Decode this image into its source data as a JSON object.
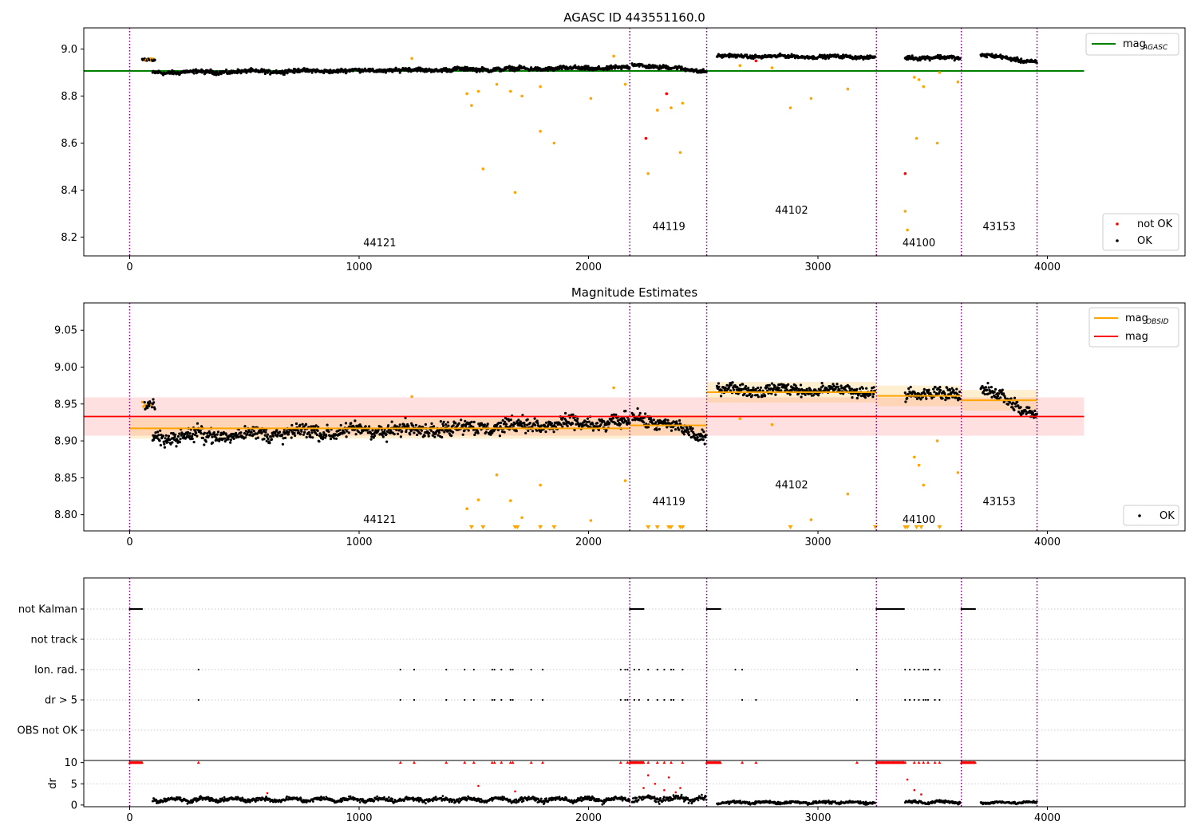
{
  "chart_data": [
    {
      "type": "scatter",
      "title": "AGASC ID 443551160.0",
      "xlabel": "",
      "ylabel": "",
      "xlim": [
        -200,
        4600
      ],
      "ylim": [
        8.12,
        9.09
      ],
      "xticks": [
        0,
        1000,
        2000,
        3000,
        4000
      ],
      "yticks": [
        "8.2",
        "8.4",
        "8.6",
        "8.8",
        "9.0"
      ],
      "obsid_boundaries": [
        0,
        2180,
        2515,
        3255,
        3625,
        3955
      ],
      "obsid_labels": [
        {
          "text": "44121",
          "x": 1090,
          "y": 8.16
        },
        {
          "text": "44119",
          "x": 2350,
          "y": 8.23
        },
        {
          "text": "44102",
          "x": 2885,
          "y": 8.3
        },
        {
          "text": "44100",
          "x": 3440,
          "y": 8.16
        },
        {
          "text": "43153",
          "x": 3790,
          "y": 8.23
        }
      ],
      "lines": [
        {
          "name": "mag_AGASC",
          "legend_main": "mag",
          "legend_sub": "AGASC",
          "color": "#008000",
          "x": [
            -200,
            4160
          ],
          "y": [
            8.907,
            8.907
          ]
        }
      ],
      "segments_ok": [
        {
          "x": [
            100,
            2180
          ],
          "y0": 8.9,
          "y1": 8.92,
          "jitter": 0.012
        },
        {
          "x": [
            2190,
            2515
          ],
          "y0": 8.935,
          "y1": 8.905,
          "jitter": 0.012
        },
        {
          "x": [
            2560,
            3250
          ],
          "y0": 8.97,
          "y1": 8.966,
          "jitter": 0.01
        },
        {
          "x": [
            3380,
            3620
          ],
          "y0": 8.965,
          "y1": 8.962,
          "jitter": 0.012
        },
        {
          "x": [
            3710,
            3955
          ],
          "y0": 8.975,
          "y1": 8.945,
          "jitter": 0.012
        }
      ],
      "early_points": {
        "x": [
          55,
          110
        ],
        "y": 8.955
      },
      "flagged_points": {
        "color": "#ffa500",
        "x": [
          1470,
          1490,
          1520,
          1540,
          1600,
          1660,
          1680,
          1710,
          1790,
          1850,
          1790,
          2010,
          2160,
          2260,
          2300,
          2360,
          2410,
          2400,
          2660,
          2800,
          2880,
          2970,
          3130,
          3380,
          3390,
          3420,
          3430,
          3440,
          3460,
          3520,
          3530,
          3610,
          1230,
          2110
        ],
        "y": [
          8.81,
          8.76,
          8.82,
          8.49,
          8.85,
          8.82,
          8.39,
          8.8,
          8.65,
          8.6,
          8.84,
          8.79,
          8.85,
          8.47,
          8.74,
          8.75,
          8.77,
          8.56,
          8.93,
          8.92,
          8.75,
          8.79,
          8.83,
          8.31,
          8.23,
          8.88,
          8.62,
          8.87,
          8.84,
          8.6,
          8.9,
          8.86,
          8.96,
          8.97
        ]
      },
      "not_ok_points": {
        "color": "#ff0000",
        "x": [
          2250,
          2340,
          3380,
          2730
        ],
        "y": [
          8.62,
          8.81,
          8.47,
          8.95
        ]
      },
      "legends": [
        {
          "position": "upper right",
          "entries": [
            {
              "label": "mag",
              "sub": "AGASC",
              "marker": "line",
              "color": "#008000"
            }
          ]
        },
        {
          "position": "lower right",
          "entries": [
            {
              "label": "not OK",
              "marker": "dot",
              "color": "#ff0000"
            },
            {
              "label": "OK",
              "marker": "dot",
              "color": "#000000"
            }
          ]
        }
      ]
    },
    {
      "type": "scatter",
      "title": "Magnitude Estimates",
      "xlabel": "",
      "ylabel": "",
      "xlim": [
        -200,
        4600
      ],
      "ylim": [
        8.778,
        9.087
      ],
      "xticks": [
        0,
        1000,
        2000,
        3000,
        4000
      ],
      "yticks": [
        "8.80",
        "8.85",
        "8.90",
        "8.95",
        "9.00",
        "9.05"
      ],
      "obsid_boundaries": [
        0,
        2180,
        2515,
        3255,
        3625,
        3955
      ],
      "obsid_labels": [
        {
          "text": "44121",
          "x": 1090,
          "y": 8.789
        },
        {
          "text": "44119",
          "x": 2350,
          "y": 8.813
        },
        {
          "text": "44102",
          "x": 2885,
          "y": 8.836
        },
        {
          "text": "44100",
          "x": 3440,
          "y": 8.789
        },
        {
          "text": "43153",
          "x": 3790,
          "y": 8.813
        }
      ],
      "mag": {
        "value": 8.933,
        "band": [
          8.907,
          8.959
        ],
        "x": [
          -200,
          4160
        ],
        "color": "#ff0000"
      },
      "mag_obsid": [
        {
          "x": [
            0,
            2180
          ],
          "value": 8.917,
          "band": [
            8.903,
            8.931
          ]
        },
        {
          "x": [
            2180,
            2515
          ],
          "value": 8.921,
          "band": [
            8.907,
            8.935
          ]
        },
        {
          "x": [
            2515,
            3255
          ],
          "value": 8.966,
          "band": [
            8.952,
            8.98
          ]
        },
        {
          "x": [
            3255,
            3625
          ],
          "value": 8.961,
          "band": [
            8.947,
            8.975
          ]
        },
        {
          "x": [
            3625,
            3955
          ],
          "value": 8.955,
          "band": [
            8.941,
            8.969
          ]
        }
      ],
      "segments_ok": [
        {
          "x": [
            100,
            2180
          ],
          "y0": 8.905,
          "y1": 8.925,
          "jitter": 0.014
        },
        {
          "x": [
            2190,
            2515
          ],
          "y0": 8.935,
          "y1": 8.905,
          "jitter": 0.013
        },
        {
          "x": [
            2560,
            3250
          ],
          "y0": 8.97,
          "y1": 8.968,
          "jitter": 0.011
        },
        {
          "x": [
            3380,
            3620
          ],
          "y0": 8.965,
          "y1": 8.962,
          "jitter": 0.012
        },
        {
          "x": [
            3710,
            3955
          ],
          "y0": 8.972,
          "y1": 8.935,
          "jitter": 0.013
        }
      ],
      "early_points": {
        "x": [
          55,
          110
        ],
        "y": 8.95
      },
      "flagged_points": {
        "color": "#ffa500",
        "x": [
          1470,
          1520,
          1600,
          1660,
          1710,
          1790,
          2010,
          2160,
          2660,
          2800,
          2970,
          3130,
          3420,
          3440,
          3460,
          3520,
          3610,
          1230,
          2110
        ],
        "y": [
          8.808,
          8.82,
          8.854,
          8.819,
          8.796,
          8.84,
          8.792,
          8.846,
          8.93,
          8.922,
          8.793,
          8.828,
          8.878,
          8.867,
          8.84,
          8.9,
          8.857,
          8.96,
          8.972
        ]
      },
      "below_axis_markers": [
        1490,
        1540,
        1680,
        1690,
        1790,
        1850,
        2260,
        2300,
        2350,
        2360,
        2400,
        2410,
        2880,
        3250,
        3380,
        3390,
        3430,
        3450,
        3530
      ],
      "legends": [
        {
          "position": "upper right",
          "entries": [
            {
              "label": "mag",
              "sub": "OBSID",
              "marker": "line",
              "color": "#ffa500"
            },
            {
              "label": "mag",
              "marker": "line",
              "color": "#ff0000"
            }
          ]
        },
        {
          "position": "lower right",
          "entries": [
            {
              "label": "OK",
              "marker": "dot",
              "color": "#000000"
            }
          ]
        }
      ]
    },
    {
      "type": "scatter",
      "title": "",
      "xlabel": "",
      "ylabel": "",
      "xlim": [
        -200,
        4600
      ],
      "categories": [
        "not Kalman",
        "not track",
        "Ion. rad.",
        "dr > 5",
        "OBS not OK"
      ],
      "obsid_boundaries": [
        0,
        2180,
        2515,
        3255,
        3625,
        3955
      ],
      "flags": {
        "not Kalman": [
          [
            0,
            55
          ],
          [
            2180,
            2240
          ],
          [
            2515,
            2575
          ],
          [
            3255,
            3375
          ],
          [
            3625,
            3685
          ]
        ],
        "not track": [],
        "Ion. rad.": [
          300,
          1180,
          1240,
          1380,
          1460,
          1500,
          1580,
          1590,
          1620,
          1660,
          1670,
          1750,
          1800,
          2140,
          2160,
          2170,
          2200,
          2220,
          2260,
          2300,
          2330,
          2360,
          2370,
          2410,
          2640,
          2670,
          3170,
          3380,
          3400,
          3420,
          3440,
          3460,
          3470,
          3480,
          3510,
          3530
        ],
        "dr > 5": [
          300,
          1180,
          1240,
          1380,
          1460,
          1500,
          1580,
          1590,
          1620,
          1660,
          1670,
          1750,
          1800,
          2140,
          2160,
          2170,
          2200,
          2220,
          2260,
          2300,
          2330,
          2360,
          2370,
          2410,
          2670,
          2730,
          3170,
          3380,
          3400,
          3420,
          3440,
          3460,
          3470,
          3480,
          3510,
          3530
        ],
        "OBS not OK": []
      }
    },
    {
      "type": "scatter",
      "title": "",
      "xlabel": "",
      "ylabel": "dr",
      "xlim": [
        -200,
        4600
      ],
      "ylim": [
        -0.4,
        10.5
      ],
      "xticks": [
        0,
        1000,
        2000,
        3000,
        4000
      ],
      "yticks": [
        "0",
        "5",
        "10"
      ],
      "obsid_boundaries": [
        0,
        2180,
        2515,
        3255,
        3625,
        3955
      ],
      "segments_ok": [
        {
          "x": [
            100,
            2180
          ],
          "base": 1.3,
          "jitter": 0.7
        },
        {
          "x": [
            2190,
            2515
          ],
          "base": 1.5,
          "jitter": 0.9
        },
        {
          "x": [
            2560,
            3250
          ],
          "base": 0.6,
          "jitter": 0.45
        },
        {
          "x": [
            3380,
            3620
          ],
          "base": 0.7,
          "jitter": 0.5
        },
        {
          "x": [
            3710,
            3955
          ],
          "base": 0.6,
          "jitter": 0.4
        }
      ],
      "capped_value": 10,
      "capped_runs": [
        [
          0,
          55
        ],
        [
          2180,
          2240
        ],
        [
          2515,
          2575
        ],
        [
          3255,
          3375
        ],
        [
          3625,
          3685
        ]
      ],
      "capped_points": [
        300,
        1180,
        1240,
        1380,
        1460,
        1500,
        1580,
        1590,
        1620,
        1660,
        1670,
        1750,
        1800,
        2140,
        2170,
        2200,
        2260,
        2300,
        2330,
        2360,
        2410,
        2670,
        2730,
        3170,
        3380,
        3420,
        3440,
        3460,
        3480,
        3510,
        3530
      ],
      "red_points": {
        "x": [
          1520,
          2240,
          2260,
          2290,
          2330,
          2350,
          2380,
          2400,
          3390,
          3420,
          3450,
          600,
          1680
        ],
        "y": [
          4.5,
          4.0,
          7.0,
          5.0,
          3.5,
          6.5,
          3.0,
          4.0,
          6.0,
          3.5,
          2.5,
          2.8,
          3.2
        ]
      }
    }
  ]
}
